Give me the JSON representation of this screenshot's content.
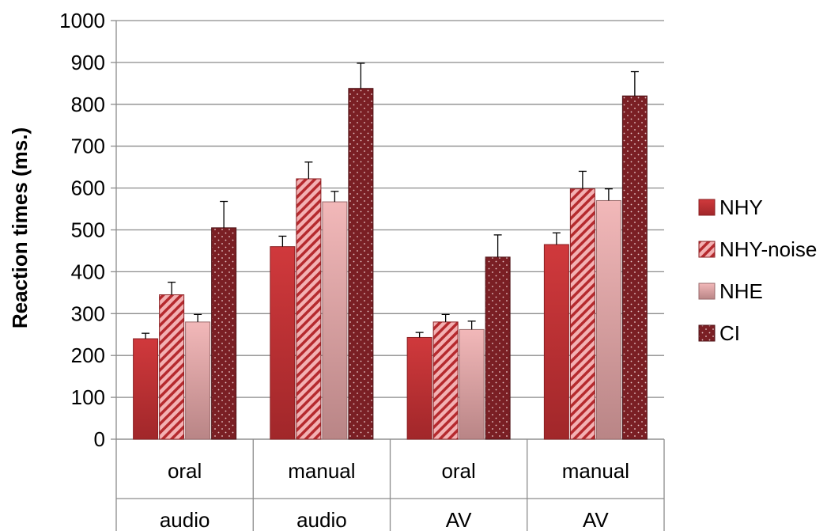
{
  "chart_data": {
    "type": "bar",
    "title": "",
    "ylabel": "Reaction times (ms.)",
    "xlabel": "",
    "ylim": [
      0,
      1000
    ],
    "yticks": [
      0,
      100,
      200,
      300,
      400,
      500,
      600,
      700,
      800,
      900,
      1000
    ],
    "grid": true,
    "legend_position": "right",
    "categories": [
      {
        "level1": "oral",
        "level2": "audio"
      },
      {
        "level1": "manual",
        "level2": "audio"
      },
      {
        "level1": "oral",
        "level2": "AV"
      },
      {
        "level1": "manual",
        "level2": "AV"
      }
    ],
    "series": [
      {
        "name": "NHY",
        "values": [
          240,
          460,
          243,
          465
        ],
        "errors": [
          13,
          25,
          12,
          28
        ],
        "pattern": "solid"
      },
      {
        "name": "NHY-noise",
        "values": [
          345,
          622,
          280,
          598
        ],
        "errors": [
          30,
          40,
          18,
          42
        ],
        "pattern": "hatch"
      },
      {
        "name": "NHE",
        "values": [
          280,
          567,
          262,
          570
        ],
        "errors": [
          18,
          25,
          20,
          28
        ],
        "pattern": "light"
      },
      {
        "name": "CI",
        "values": [
          505,
          838,
          435,
          820
        ],
        "errors": [
          63,
          60,
          53,
          58
        ],
        "pattern": "dots"
      }
    ]
  }
}
